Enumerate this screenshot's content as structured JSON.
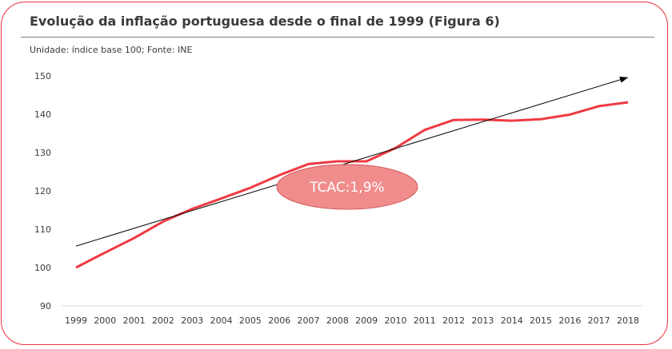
{
  "header": {
    "title": "Evolução da inflação portuguesa desde o final de 1999 (Figura 6)",
    "subtitle": "Unidade: índice base 100;  Fonte: INE"
  },
  "callout": {
    "label": "TCAC:1,9%",
    "fill": "#f08c8c"
  },
  "colors": {
    "series": "#ee3a43",
    "trend": "#000000",
    "border": "#e8303a"
  },
  "chart_data": {
    "type": "line",
    "x": [
      "1999",
      "2000",
      "2001",
      "2002",
      "2003",
      "2004",
      "2005",
      "2006",
      "2007",
      "2008",
      "2009",
      "2010",
      "2011",
      "2012",
      "2013",
      "2014",
      "2015",
      "2016",
      "2017",
      "2018"
    ],
    "series": [
      {
        "values": [
          100,
          103.9,
          107.7,
          112,
          115.3,
          118,
          120.8,
          124.1,
          127,
          127.7,
          127.7,
          131.2,
          135.9,
          138.5,
          138.6,
          138.3,
          138.7,
          139.9,
          142.1,
          143.1
        ]
      }
    ],
    "trendline": {
      "start": [
        1999,
        105.6
      ],
      "end": [
        2018,
        149.6
      ]
    },
    "yticks": [
      90,
      100,
      110,
      120,
      130,
      140,
      150
    ],
    "ylim": [
      90,
      150
    ],
    "grid": false
  }
}
